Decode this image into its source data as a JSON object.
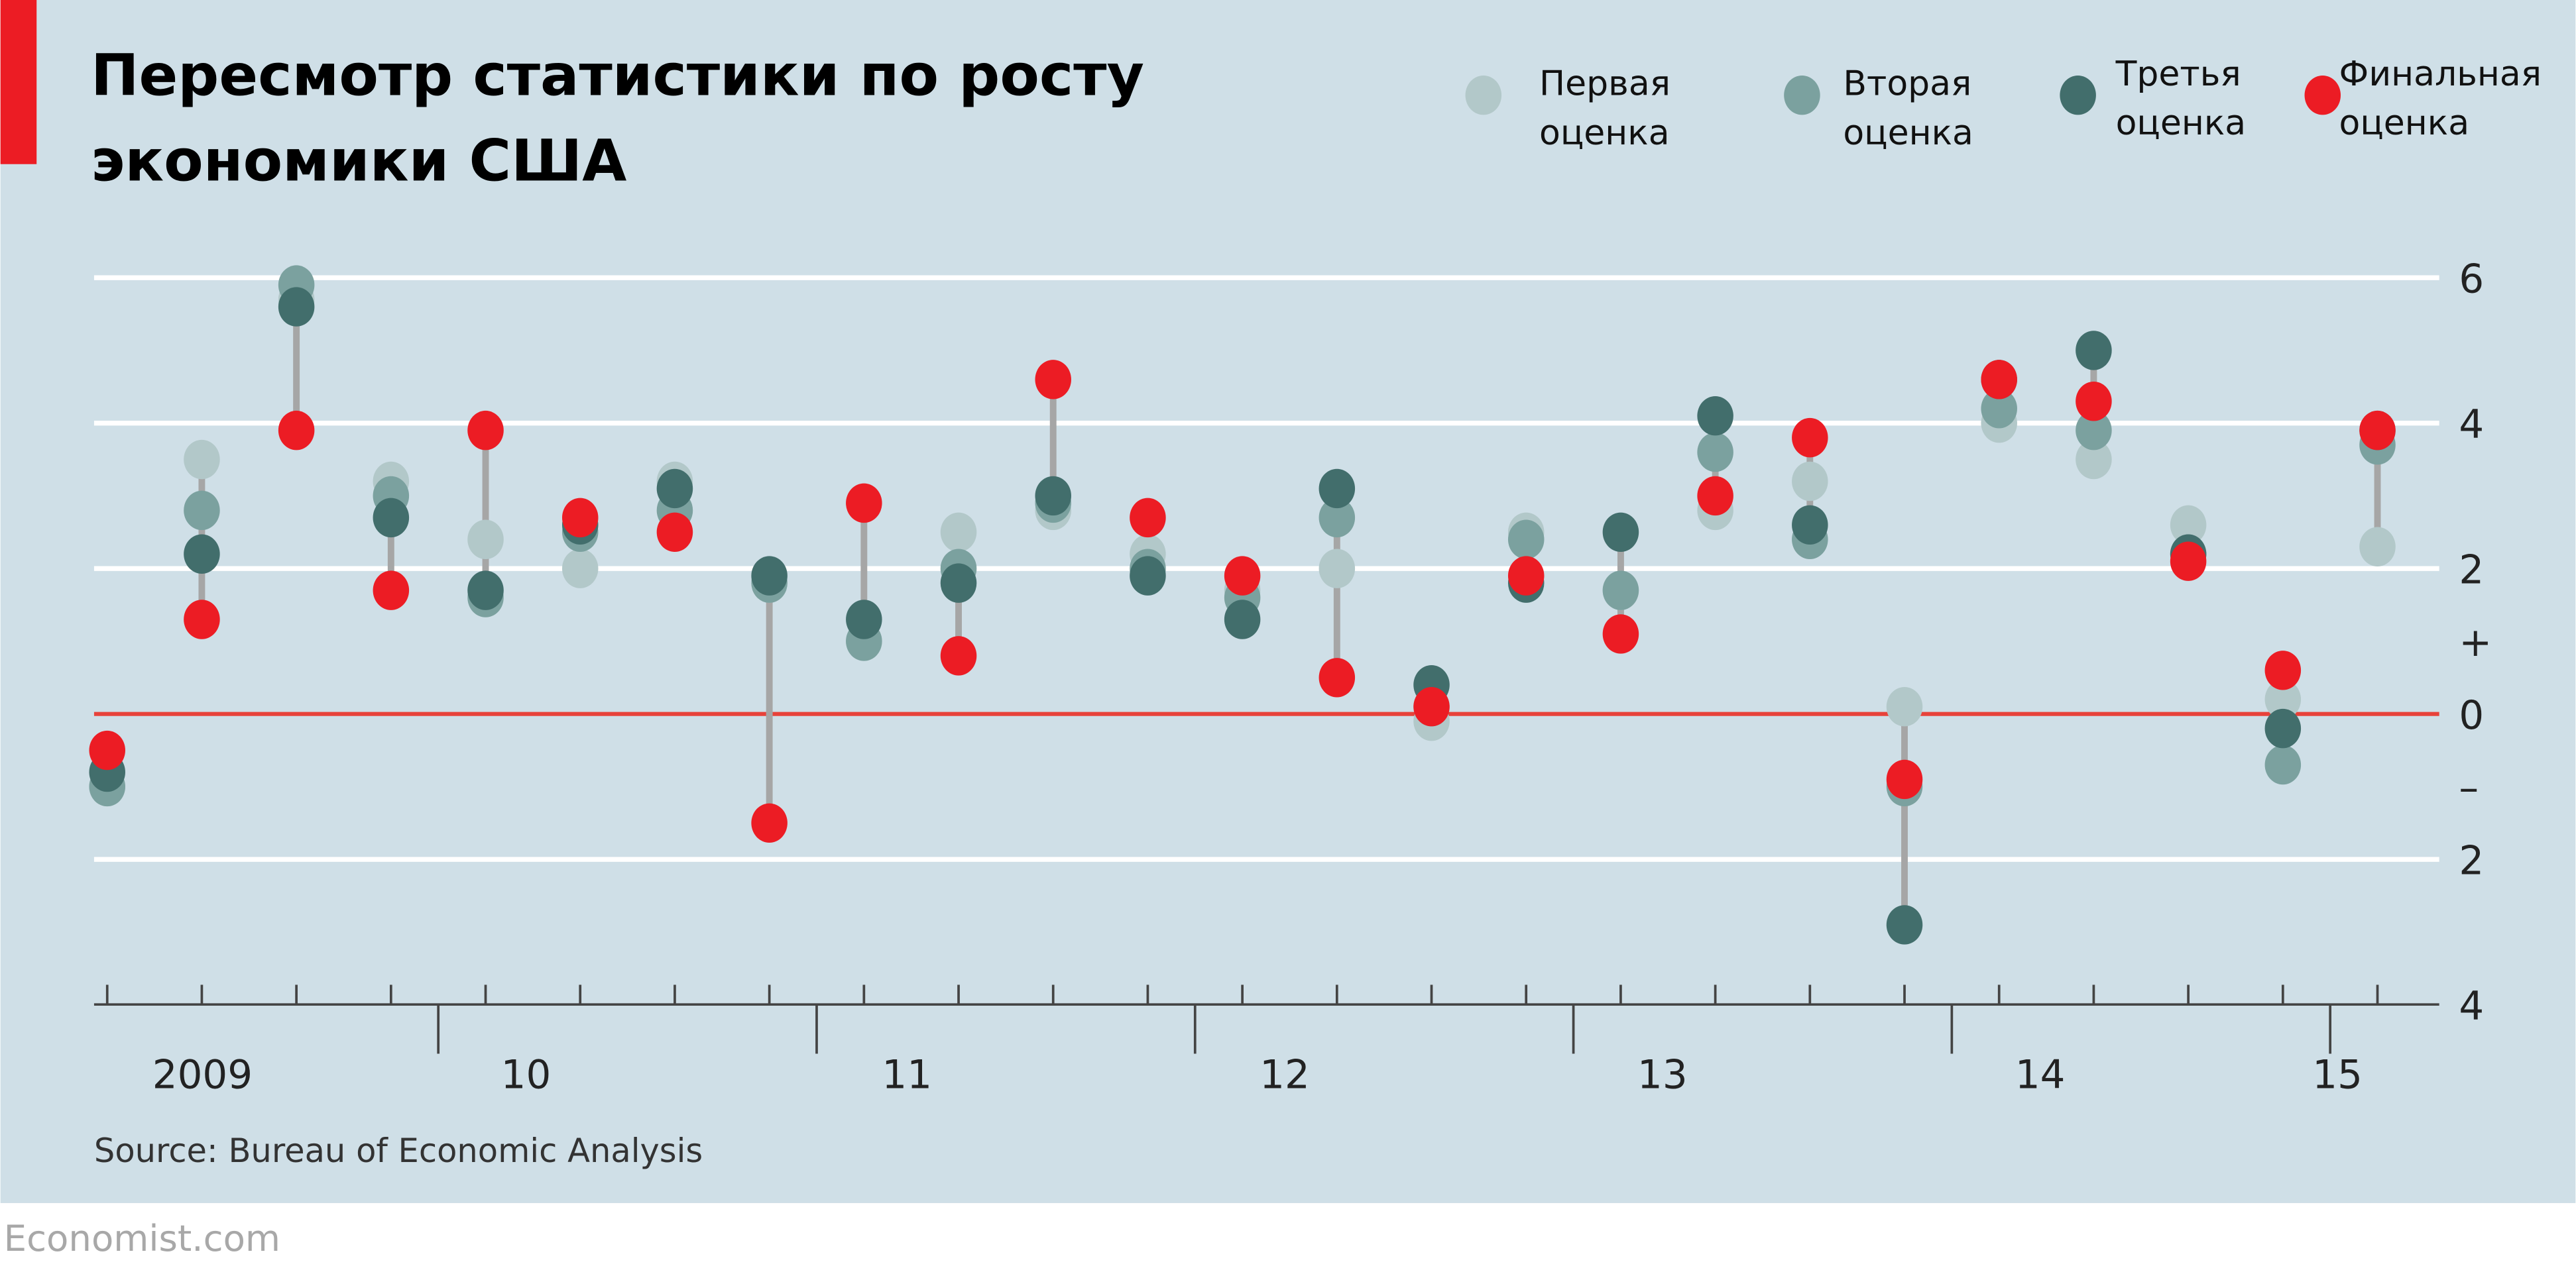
{
  "title_line1": "Пересмотр статистики по росту",
  "title_line2": "экономики США",
  "source": "Source: Bureau of Economic Analysis",
  "brand": "Economist.com",
  "colors": {
    "background": "#cfdfe7",
    "first": "#b2c8c9",
    "second": "#7ba19f",
    "third": "#426e6c",
    "final": "#ec1c24",
    "zero_line": "#e8423a",
    "connector": "#a6a6a6",
    "brand_bar": "#ec1c24"
  },
  "chart_data": {
    "type": "scatter",
    "title": "Пересмотр статистики по росту экономики США",
    "xlabel": "",
    "ylabel": "",
    "ylim": [
      -4,
      6
    ],
    "y_ticks": [
      {
        "value": 6,
        "label": "6"
      },
      {
        "value": 4,
        "label": "4"
      },
      {
        "value": 2,
        "label": "2"
      },
      {
        "value": 1,
        "label": "+"
      },
      {
        "value": 0,
        "label": "0"
      },
      {
        "value": -1,
        "label": "–"
      },
      {
        "value": -2,
        "label": "2"
      },
      {
        "value": -4,
        "label": "4"
      }
    ],
    "grid": true,
    "legend_position": "top-right",
    "year_labels": [
      "2009",
      "10",
      "11",
      "12",
      "13",
      "14",
      "15"
    ],
    "x": [
      "2009Q1",
      "2009Q2",
      "2009Q3",
      "2009Q4",
      "2010Q1",
      "2010Q2",
      "2010Q3",
      "2010Q4",
      "2011Q1",
      "2011Q2",
      "2011Q3",
      "2011Q4",
      "2012Q1",
      "2012Q2",
      "2012Q3",
      "2012Q4",
      "2013Q1",
      "2013Q2",
      "2013Q3",
      "2013Q4",
      "2014Q1",
      "2014Q2",
      "2014Q3",
      "2014Q4",
      "2015Q1"
    ],
    "series": [
      {
        "name": "Первая\nоценка",
        "label_line1": "Первая",
        "label_line2": "оценка",
        "key": "first",
        "values": [
          -1.0,
          3.5,
          5.7,
          3.2,
          2.4,
          2.0,
          3.2,
          1.8,
          1.0,
          2.5,
          2.8,
          2.2,
          1.7,
          2.0,
          -0.1,
          2.5,
          1.7,
          2.8,
          3.2,
          0.1,
          4.0,
          3.5,
          2.6,
          0.2,
          2.3
        ]
      },
      {
        "name": "Вторая\nоценка",
        "label_line1": "Вторая",
        "label_line2": "оценка",
        "key": "second",
        "values": [
          -1.0,
          2.8,
          5.9,
          3.0,
          1.6,
          2.5,
          2.8,
          1.8,
          1.0,
          2.0,
          2.9,
          2.0,
          1.6,
          2.7,
          0.1,
          2.4,
          1.7,
          3.6,
          2.4,
          -1.0,
          4.2,
          3.9,
          2.2,
          -0.7,
          3.7
        ]
      },
      {
        "name": "Третья\nоценка",
        "label_line1": "Третья",
        "label_line2": "оценка",
        "key": "third",
        "values": [
          -0.8,
          2.2,
          5.6,
          2.7,
          1.7,
          2.6,
          3.1,
          1.9,
          1.3,
          1.8,
          3.0,
          1.9,
          1.3,
          3.1,
          0.4,
          1.8,
          2.5,
          4.1,
          2.6,
          -2.9,
          4.6,
          5.0,
          2.2,
          -0.2,
          3.9
        ]
      },
      {
        "name": "Финальная\nоценка",
        "label_line1": "Финальная",
        "label_line2": "оценка",
        "key": "final",
        "values": [
          -0.5,
          1.3,
          3.9,
          1.7,
          3.9,
          2.7,
          2.5,
          -1.5,
          2.9,
          0.8,
          4.6,
          2.7,
          1.9,
          0.5,
          0.1,
          1.9,
          1.1,
          3.0,
          3.8,
          -0.9,
          4.6,
          4.3,
          2.1,
          0.6,
          3.9
        ]
      }
    ]
  }
}
